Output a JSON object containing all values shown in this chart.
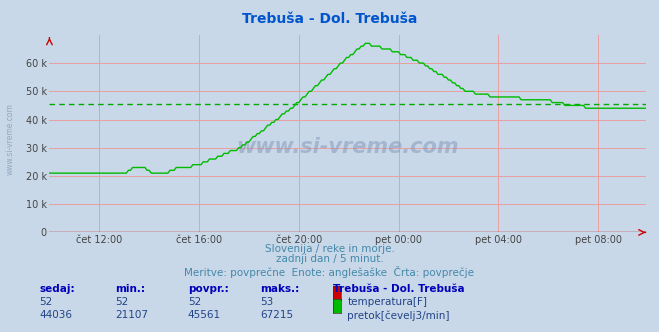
{
  "title": "Trebuša - Dol. Trebuša",
  "title_color": "#0055cc",
  "bg_color": "#c8d8e8",
  "plot_bg_color": "#c8d8e8",
  "x_labels": [
    "čet 12:00",
    "čet 16:00",
    "čet 20:00",
    "pet 00:00",
    "pet 04:00",
    "pet 08:00"
  ],
  "y_ticks": [
    0,
    10000,
    20000,
    30000,
    40000,
    50000,
    60000
  ],
  "y_tick_labels": [
    "0",
    "10 k",
    "20 k",
    "30 k",
    "40 k",
    "50 k",
    "60 k"
  ],
  "y_max": 70000,
  "grid_color": "#e8a0a0",
  "avg_line_color": "#00aa00",
  "avg_line_value": 45561,
  "flow_color": "#00bb00",
  "temp_color": "#cc0000",
  "watermark": "www.si-vreme.com",
  "subtitle1": "Slovenija / reke in morje.",
  "subtitle2": "zadnji dan / 5 minut.",
  "subtitle3": "Meritve: povprečne  Enote: anglešaške  Črta: povprečje",
  "subtitle_color": "#4488aa",
  "table_header": [
    "sedaj:",
    "min.:",
    "povpr.:",
    "maks.:",
    "Trebuša - Dol. Trebuša"
  ],
  "table_row1": [
    "52",
    "52",
    "52",
    "53",
    "temperatura[F]"
  ],
  "table_row2": [
    "44036",
    "21107",
    "45561",
    "67215",
    "pretok[čevelj3/min]"
  ],
  "table_color": "#0000bb",
  "table_data_color": "#224488",
  "figsize": [
    6.59,
    3.32
  ],
  "dpi": 100,
  "spine_color": "#cc0000",
  "axis_label_color": "#444444"
}
